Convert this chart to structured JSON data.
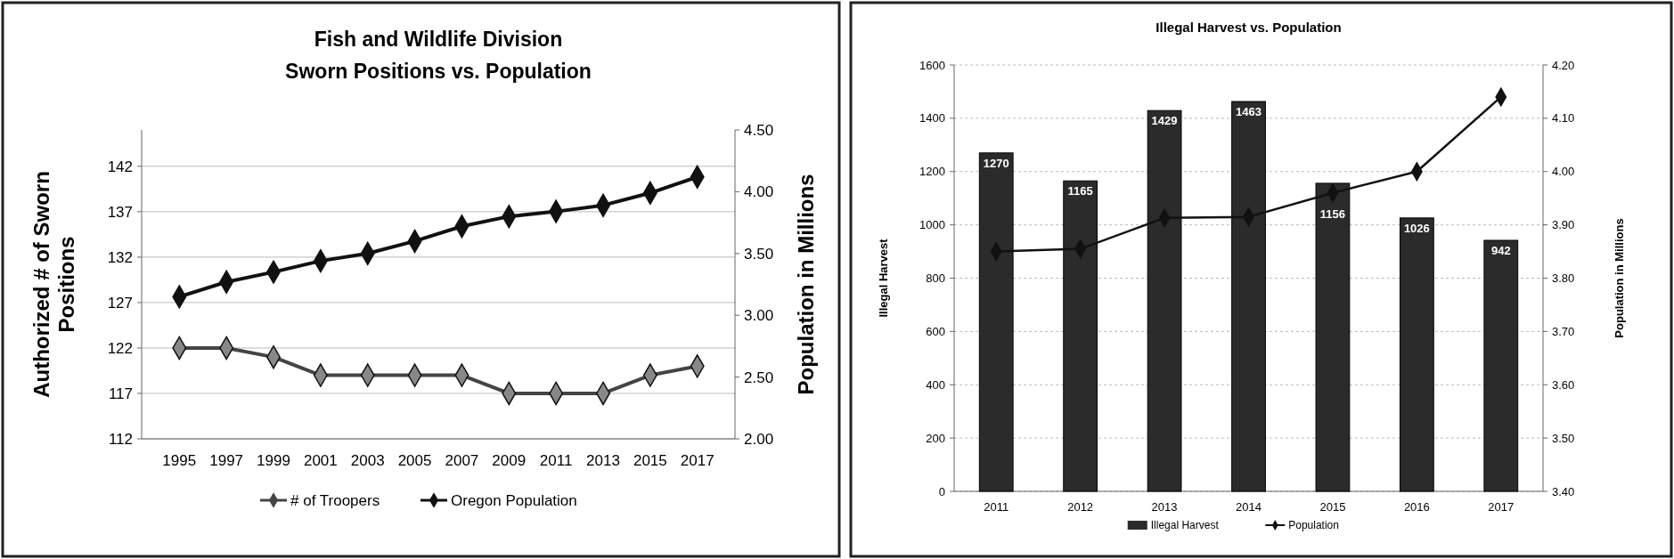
{
  "chart_data": [
    {
      "type": "line",
      "title": "Fish and Wildlife Division",
      "subtitle": "Sworn Positions vs. Population",
      "ylabel": "Authorized # of Sworn Positions",
      "y2label": "Population in Millions",
      "categories": [
        "1995",
        "1997",
        "1999",
        "2001",
        "2003",
        "2005",
        "2007",
        "2009",
        "2011",
        "2013",
        "2015",
        "2017"
      ],
      "series": [
        {
          "name": "# of Troopers",
          "color": "#444444",
          "values": [
            122,
            122,
            121,
            119,
            119,
            119,
            119,
            117,
            117,
            117,
            119,
            120
          ]
        },
        {
          "name": "Oregon Population",
          "color": "#111111",
          "axis": "y2",
          "values": [
            3.15,
            3.27,
            3.35,
            3.44,
            3.5,
            3.6,
            3.72,
            3.8,
            3.84,
            3.89,
            3.99,
            4.12
          ]
        }
      ],
      "ylim": [
        112,
        146
      ],
      "yticks": [
        112,
        117,
        122,
        127,
        132,
        137,
        142
      ],
      "y2lim": [
        2,
        4.5
      ],
      "y2ticks": [
        {
          "value": 2,
          "label": "2.00"
        },
        {
          "value": 2.5,
          "label": "2.50"
        },
        {
          "value": 3,
          "label": "3.00"
        },
        {
          "value": 3.5,
          "label": "3.50"
        },
        {
          "value": 4,
          "label": "4.00"
        },
        {
          "value": 4.5,
          "label": "4.50"
        }
      ],
      "grid": "y",
      "legend": "bottom",
      "marker": "diamond",
      "line_style": "solid"
    },
    {
      "type": "bar",
      "title": "Illegal Harvest vs. Population",
      "ylabel": "Illegal Harvest",
      "y2label": "Population in Millions",
      "categories": [
        "2011",
        "2012",
        "2013",
        "2014",
        "2015",
        "2016",
        "2017"
      ],
      "series": [
        {
          "name": "Illegal Harvest",
          "color": "#2b2b2b",
          "values": [
            1270,
            1165,
            1429,
            1463,
            1156,
            1026,
            942
          ],
          "value_labels": [
            "1270",
            "1165",
            "1429",
            "1463",
            "1156",
            "1026",
            "942"
          ]
        },
        {
          "name": "Population",
          "type": "line",
          "color": "#111111",
          "axis": "y2",
          "values": [
            3.85,
            3.855,
            3.913,
            3.915,
            3.96,
            4.0,
            4.14
          ]
        }
      ],
      "ylim": [
        0,
        1600
      ],
      "yticks": [
        0,
        200,
        400,
        600,
        800,
        1000,
        1200,
        1400,
        1600
      ],
      "y2lim": [
        3.4,
        4.2
      ],
      "y2ticks": [
        {
          "value": 3.4,
          "label": "3.40"
        },
        {
          "value": 3.5,
          "label": "3.50"
        },
        {
          "value": 3.6,
          "label": "3.60"
        },
        {
          "value": 3.7,
          "label": "3.70"
        },
        {
          "value": 3.8,
          "label": "3.80"
        },
        {
          "value": 3.9,
          "label": "3.90"
        },
        {
          "value": 4.0,
          "label": "4.00"
        },
        {
          "value": 4.1,
          "label": "4.10"
        },
        {
          "value": 4.2,
          "label": "4.20"
        }
      ],
      "grid": "y",
      "legend": "bottom",
      "marker": "diamond",
      "line_style": "solid"
    }
  ]
}
